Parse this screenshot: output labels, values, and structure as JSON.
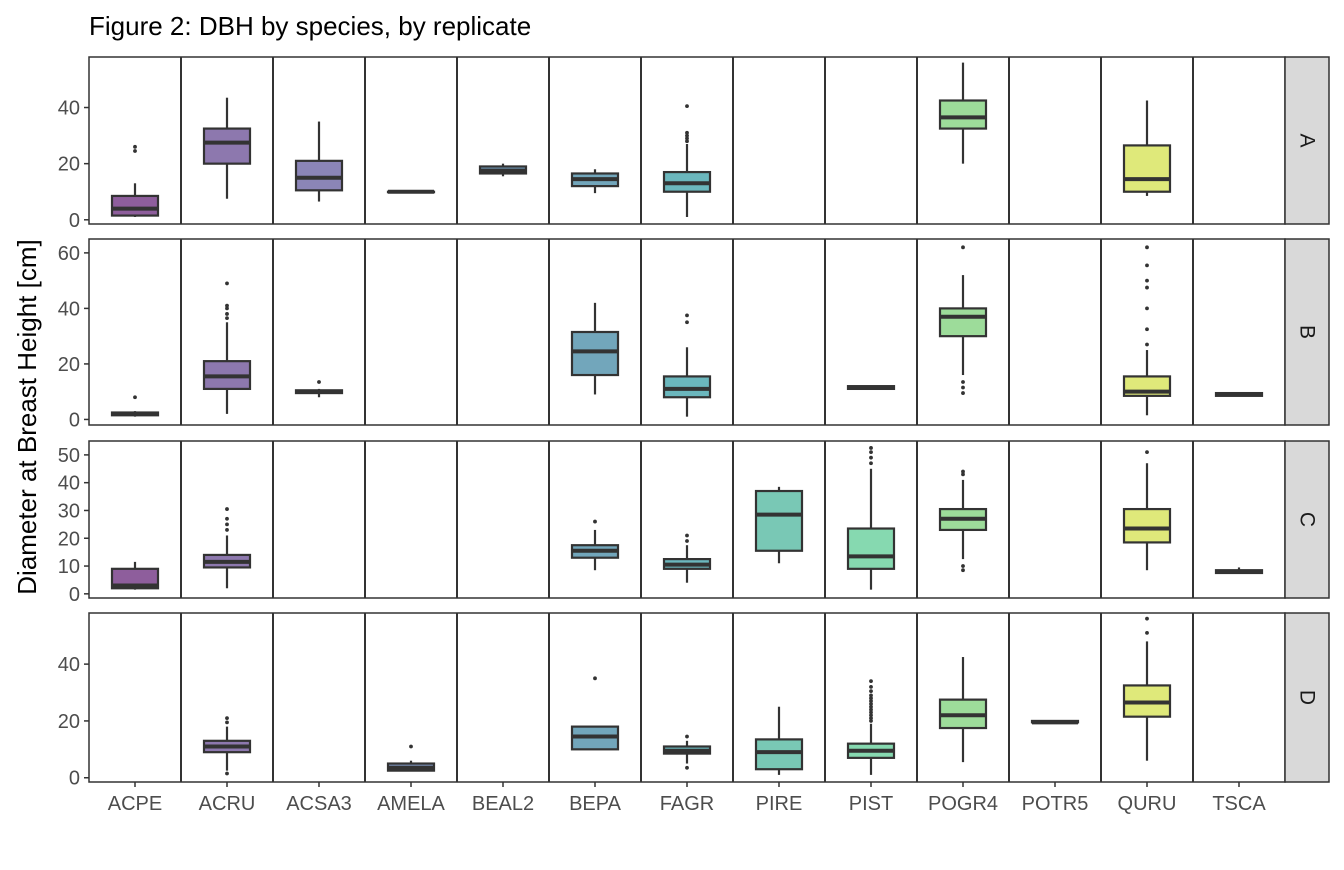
{
  "chart_data": {
    "type": "boxplot",
    "title": "Figure 2:  DBH by species, by replicate",
    "xlabel": "",
    "ylabel": "Diameter at Breast Height [cm]",
    "categories": [
      "ACPE",
      "ACRU",
      "ACSA3",
      "AMELA",
      "BEAL2",
      "BEPA",
      "FAGR",
      "PIRE",
      "PIST",
      "POGR4",
      "POTR5",
      "QURU",
      "TSCA"
    ],
    "colors": {
      "ACPE": "#8e5e9c",
      "ACRU": "#8d78ae",
      "ACSA3": "#8b85b7",
      "AMELA": "#7b8fb6",
      "BEAL2": "#6f99b8",
      "BEPA": "#72a6bb",
      "FAGR": "#6bb7bd",
      "PIRE": "#79c8b5",
      "PIST": "#86d9b0",
      "POGR4": "#9ddc9a",
      "POTR5": "#b6e58a",
      "QURU": "#dfe97a",
      "TSCA": "#e4ea78"
    },
    "facets": [
      {
        "label": "A",
        "ylim": [
          -1.5,
          58
        ],
        "yticks": [
          0,
          20,
          40
        ],
        "boxes": [
          {
            "species": "ACPE",
            "q1": 1.5,
            "median": 4,
            "q3": 8.5,
            "low": 1,
            "high": 13,
            "outliers": [
              24.5,
              26
            ]
          },
          {
            "species": "ACRU",
            "q1": 20,
            "median": 27.5,
            "q3": 32.5,
            "low": 7.5,
            "high": 43.5,
            "outliers": []
          },
          {
            "species": "ACSA3",
            "q1": 10.5,
            "median": 15,
            "q3": 21,
            "low": 6.5,
            "high": 35,
            "outliers": []
          },
          {
            "species": "AMELA",
            "q1": 10,
            "median": 10,
            "q3": 10,
            "low": 10,
            "high": 10,
            "outliers": []
          },
          {
            "species": "BEAL2",
            "q1": 16.5,
            "median": 17.5,
            "q3": 19,
            "low": 15.5,
            "high": 20,
            "outliers": []
          },
          {
            "species": "BEPA",
            "q1": 12,
            "median": 14.5,
            "q3": 16.5,
            "low": 9.5,
            "high": 18,
            "outliers": []
          },
          {
            "species": "FAGR",
            "q1": 10,
            "median": 13,
            "q3": 17,
            "low": 1,
            "high": 27,
            "outliers": [
              28,
              29,
              30,
              31,
              40.5
            ]
          },
          {
            "species": "POGR4",
            "q1": 32.5,
            "median": 36.5,
            "q3": 42.5,
            "low": 20,
            "high": 56,
            "outliers": []
          },
          {
            "species": "QURU",
            "q1": 10,
            "median": 14.5,
            "q3": 26.5,
            "low": 8.5,
            "high": 42.5,
            "outliers": []
          }
        ]
      },
      {
        "label": "B",
        "ylim": [
          -2,
          65
        ],
        "yticks": [
          0,
          20,
          40,
          60
        ],
        "boxes": [
          {
            "species": "ACPE",
            "q1": 1.5,
            "median": 2,
            "q3": 2.5,
            "low": 1,
            "high": 3,
            "outliers": [
              8
            ]
          },
          {
            "species": "ACRU",
            "q1": 11,
            "median": 15.5,
            "q3": 21,
            "low": 2,
            "high": 35,
            "outliers": [
              36.5,
              38,
              40,
              41,
              49
            ]
          },
          {
            "species": "ACSA3",
            "q1": 9.5,
            "median": 10,
            "q3": 10.5,
            "low": 8,
            "high": 11,
            "outliers": [
              13.5
            ]
          },
          {
            "species": "BEPA",
            "q1": 16,
            "median": 24.5,
            "q3": 31.5,
            "low": 9,
            "high": 42,
            "outliers": []
          },
          {
            "species": "FAGR",
            "q1": 8,
            "median": 11,
            "q3": 15.5,
            "low": 1,
            "high": 26,
            "outliers": [
              35,
              37.5
            ]
          },
          {
            "species": "PIST",
            "q1": 11,
            "median": 11.5,
            "q3": 12,
            "low": 11,
            "high": 12,
            "outliers": []
          },
          {
            "species": "POGR4",
            "q1": 30,
            "median": 37,
            "q3": 40,
            "low": 16,
            "high": 52,
            "outliers": [
              9.5,
              11.5,
              13.5,
              62
            ]
          },
          {
            "species": "QURU",
            "q1": 8.5,
            "median": 10,
            "q3": 15.5,
            "low": 1.5,
            "high": 25,
            "outliers": [
              27,
              32.5,
              40,
              47.5,
              50,
              55.5,
              62
            ]
          },
          {
            "species": "TSCA",
            "q1": 8.5,
            "median": 9,
            "q3": 9.5,
            "low": 8.5,
            "high": 9.5,
            "outliers": []
          }
        ]
      },
      {
        "label": "C",
        "ylim": [
          -1.5,
          55
        ],
        "yticks": [
          0,
          10,
          20,
          30,
          40,
          50
        ],
        "boxes": [
          {
            "species": "ACPE",
            "q1": 2,
            "median": 3,
            "q3": 9,
            "low": 1.5,
            "high": 11.5,
            "outliers": []
          },
          {
            "species": "ACRU",
            "q1": 9.5,
            "median": 11.5,
            "q3": 14,
            "low": 2,
            "high": 21,
            "outliers": [
              23,
              25,
              27,
              30.5
            ]
          },
          {
            "species": "BEPA",
            "q1": 13,
            "median": 15.5,
            "q3": 17.5,
            "low": 8.5,
            "high": 23,
            "outliers": [
              26
            ]
          },
          {
            "species": "FAGR",
            "q1": 9,
            "median": 10.5,
            "q3": 12.5,
            "low": 4,
            "high": 17.5,
            "outliers": [
              19,
              21
            ]
          },
          {
            "species": "PIRE",
            "q1": 15.5,
            "median": 28.5,
            "q3": 37,
            "low": 11,
            "high": 38.5,
            "outliers": []
          },
          {
            "species": "PIST",
            "q1": 9,
            "median": 13.5,
            "q3": 23.5,
            "low": 1.5,
            "high": 45,
            "outliers": [
              47,
              49,
              51,
              52.5
            ]
          },
          {
            "species": "POGR4",
            "q1": 23,
            "median": 27,
            "q3": 30.5,
            "low": 12.5,
            "high": 41,
            "outliers": [
              8.5,
              10,
              43,
              44
            ]
          },
          {
            "species": "QURU",
            "q1": 18.5,
            "median": 23.5,
            "q3": 30.5,
            "low": 8.5,
            "high": 47,
            "outliers": [
              51
            ]
          },
          {
            "species": "TSCA",
            "q1": 7.5,
            "median": 8,
            "q3": 8.5,
            "low": 7.5,
            "high": 9.5,
            "outliers": []
          }
        ]
      },
      {
        "label": "D",
        "ylim": [
          -1.5,
          58
        ],
        "yticks": [
          0,
          20,
          40
        ],
        "boxes": [
          {
            "species": "ACRU",
            "q1": 9,
            "median": 11,
            "q3": 13,
            "low": 2.5,
            "high": 18,
            "outliers": [
              1.5,
              19.5,
              21
            ]
          },
          {
            "species": "AMELA",
            "q1": 2.5,
            "median": 3.5,
            "q3": 5,
            "low": 2.5,
            "high": 6,
            "outliers": [
              11
            ]
          },
          {
            "species": "BEPA",
            "q1": 10,
            "median": 14.5,
            "q3": 18,
            "low": 10,
            "high": 18,
            "outliers": [
              35
            ]
          },
          {
            "species": "FAGR",
            "q1": 8.5,
            "median": 9.5,
            "q3": 11,
            "low": 5,
            "high": 13,
            "outliers": [
              3.5,
              14.5
            ]
          },
          {
            "species": "PIRE",
            "q1": 3,
            "median": 9,
            "q3": 13.5,
            "low": 1,
            "high": 25,
            "outliers": []
          },
          {
            "species": "PIST",
            "q1": 7,
            "median": 9.5,
            "q3": 12,
            "low": 1,
            "high": 19,
            "outliers": [
              20,
              21,
              22,
              23,
              24,
              25,
              26,
              27,
              28,
              29,
              30.5,
              32,
              34
            ]
          },
          {
            "species": "POGR4",
            "q1": 17.5,
            "median": 22,
            "q3": 27.5,
            "low": 5.5,
            "high": 42.5,
            "outliers": []
          },
          {
            "species": "POTR5",
            "q1": 19.5,
            "median": 19.5,
            "q3": 20,
            "low": 19,
            "high": 20,
            "outliers": []
          },
          {
            "species": "QURU",
            "q1": 21.5,
            "median": 26.5,
            "q3": 32.5,
            "low": 6,
            "high": 48,
            "outliers": [
              51,
              56
            ]
          }
        ]
      }
    ]
  }
}
